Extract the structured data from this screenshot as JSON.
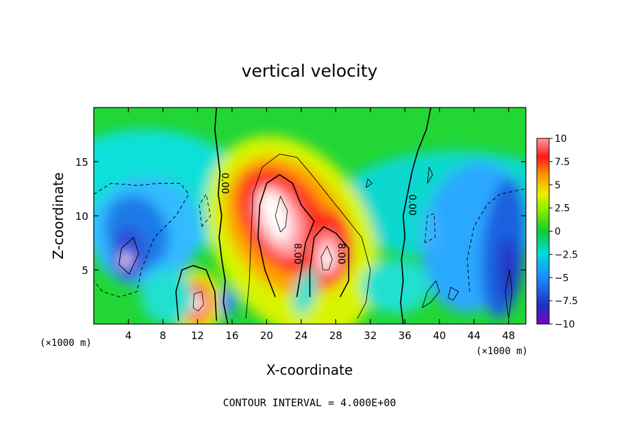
{
  "chart_data": {
    "type": "heatmap",
    "title": "vertical velocity",
    "xlabel": "X-coordinate",
    "ylabel": "Z-coordinate",
    "x_unit_label": "(×1000 m)",
    "x_unit_label_right": "(×1000 m)",
    "footer": "CONTOUR INTERVAL = 4.000E+00",
    "xlim": [
      0,
      50
    ],
    "ylim": [
      0,
      20
    ],
    "x_ticks": [
      4,
      8,
      12,
      16,
      20,
      24,
      28,
      32,
      36,
      40,
      44,
      48
    ],
    "y_ticks": [
      5,
      10,
      15
    ],
    "x_tick_labels": [
      "4",
      "8",
      "12",
      "16",
      "20",
      "24",
      "28",
      "32",
      "36",
      "40",
      "44",
      "48"
    ],
    "y_tick_labels": [
      "5",
      "10",
      "15"
    ],
    "colorbar": {
      "range": [
        -10,
        10
      ],
      "tick_values": [
        10,
        7.5,
        5,
        2.5,
        0,
        -2.5,
        -5,
        -7.5,
        -10
      ],
      "tick_labels": [
        "10",
        "7.5",
        "5",
        "2.5",
        "0",
        "−2.5",
        "−5",
        "−7.5",
        "−10"
      ]
    },
    "contour_labels": [
      {
        "text": "0.00",
        "x": 14.8,
        "y": 13.0
      },
      {
        "text": "0.00",
        "x": 36.5,
        "y": 11.0
      },
      {
        "text": "8.00",
        "x": 23.2,
        "y": 6.5
      },
      {
        "text": "8.00",
        "x": 28.3,
        "y": 6.5
      }
    ],
    "features": [
      {
        "name": "main updraft",
        "x": 21.5,
        "z": 10.5,
        "w": 13
      },
      {
        "name": "secondary updraft",
        "x": 26.5,
        "z": 6.5,
        "w": 11
      },
      {
        "name": "low updraft",
        "x": 12,
        "z": 2,
        "w": 11
      },
      {
        "name": "left downdraft",
        "x": 3.7,
        "z": 5.8,
        "w": -10
      },
      {
        "name": "right downdraft",
        "x": 47.8,
        "z": 7,
        "w": -8
      }
    ]
  }
}
